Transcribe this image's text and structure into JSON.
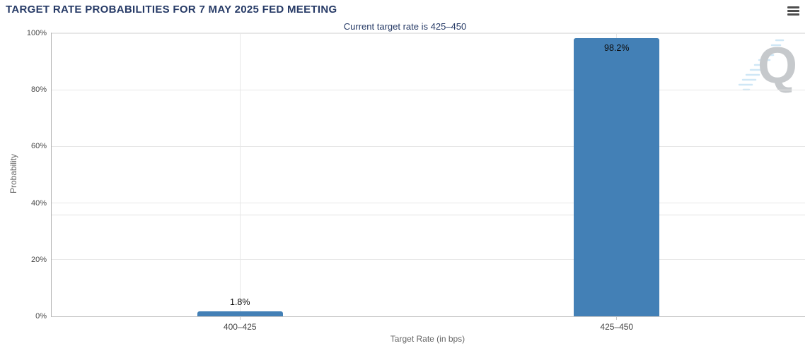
{
  "page": {
    "background": "#ffffff"
  },
  "header": {
    "title": "TARGET RATE PROBABILITIES FOR 7 MAY 2025 FED MEETING",
    "menu_icon": "hamburger-icon"
  },
  "chart_data": {
    "type": "bar",
    "title": "TARGET RATE PROBABILITIES FOR 7 MAY 2025 FED MEETING",
    "subtitle": "Current target rate is 425–450",
    "categories": [
      "400–425",
      "425–450"
    ],
    "values": [
      1.8,
      98.2
    ],
    "value_labels": [
      "1.8%",
      "98.2%"
    ],
    "xlabel": "Target Rate (in bps)",
    "ylabel": "Probability",
    "ylim": [
      0,
      100
    ],
    "yticks_pct": [
      0,
      20,
      40,
      60,
      80,
      100
    ],
    "ytick_labels": [
      "0%",
      "20%",
      "40%",
      "60%",
      "80%",
      "100%"
    ],
    "minor_line_pct": 35.9,
    "grid": true,
    "legend": false,
    "bar_color": "#4380b6"
  },
  "watermark": {
    "letter": "Q"
  },
  "colors": {
    "title_text": "#263a66",
    "bar": "#4380b6",
    "grid": "#e7e7e7",
    "axis": "#c6c6c6",
    "tick_text": "#484848",
    "axis_title_text": "#666666",
    "value_label_text": "#0d0d0d",
    "menu_icon": "#4d4d4d",
    "watermark_q": "#c6c9cc",
    "watermark_dash": "#cfe7f6"
  }
}
